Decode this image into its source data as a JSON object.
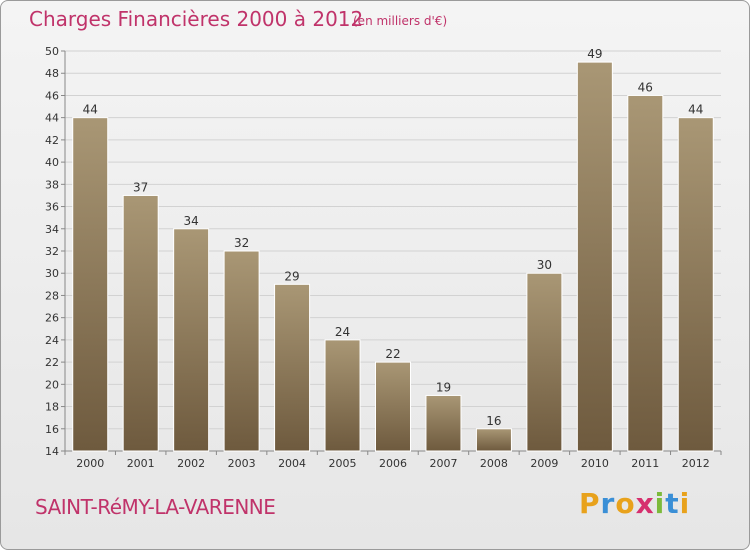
{
  "header": {
    "title": "Charges Financières 2000 à 2012",
    "unit": "(en milliers d'€)"
  },
  "footer": {
    "town": "SAINT-RéMY-LA-VARENNE",
    "brand_letters": [
      "P",
      "r",
      "o",
      "x",
      "i",
      "t",
      "i"
    ],
    "brand_colors": [
      "#e8a21c",
      "#3a8fd6",
      "#e8a21c",
      "#d62f6e",
      "#7cba3a",
      "#3a8fd6",
      "#e8a21c"
    ]
  },
  "colors": {
    "bar_top": "#a99775",
    "bar_bottom": "#6e5a3e",
    "bar_stroke": "#ffffff",
    "grid": "#d2d2d2",
    "text": "#333333",
    "accent": "#c0336a"
  },
  "chart_data": {
    "type": "bar",
    "categories": [
      "2000",
      "2001",
      "2002",
      "2003",
      "2004",
      "2005",
      "2006",
      "2007",
      "2008",
      "2009",
      "2010",
      "2011",
      "2012"
    ],
    "values": [
      44,
      37,
      34,
      32,
      29,
      24,
      22,
      19,
      16,
      30,
      49,
      46,
      44
    ],
    "title": "Charges Financières 2000 à 2012",
    "subtitle": "(en milliers d'€)",
    "xlabel": "",
    "ylabel": "",
    "ylim": [
      14,
      50
    ],
    "yticks": [
      14,
      16,
      18,
      20,
      22,
      24,
      26,
      28,
      30,
      32,
      34,
      36,
      38,
      40,
      42,
      44,
      46,
      48,
      50
    ],
    "grid": true,
    "legend": "none"
  }
}
